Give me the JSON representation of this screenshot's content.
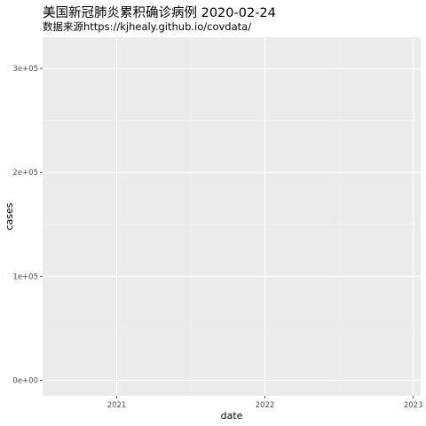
{
  "chart_data": {
    "type": "line",
    "title": "美国新冠肺炎累积确诊病例 2020-02-24",
    "subtitle": "数据来源https://kjhealy.github.io/covdata/",
    "xlabel": "date",
    "ylabel": "cases",
    "x_tick_labels": [
      "2021",
      "2022",
      "2023"
    ],
    "y_tick_labels": [
      "0e+00",
      "1e+05",
      "2e+05",
      "3e+05"
    ],
    "y_ticks": [
      0,
      100000,
      200000,
      300000
    ],
    "xlim": [
      2020.5,
      2023.05
    ],
    "ylim": [
      -15000,
      330000
    ],
    "grid": true,
    "series": []
  }
}
